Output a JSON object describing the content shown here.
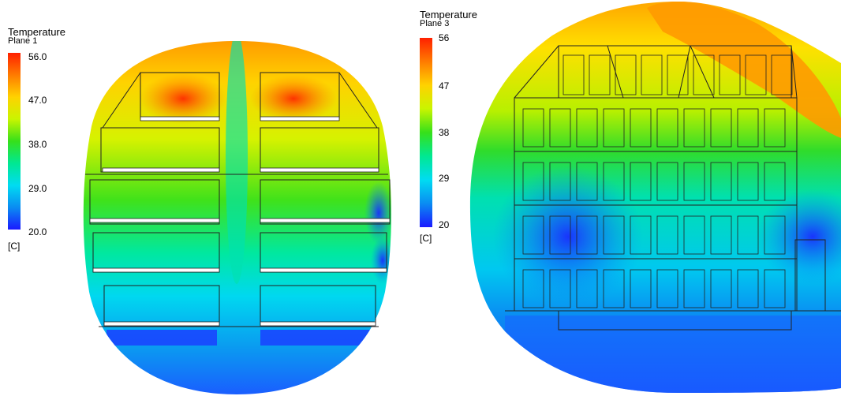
{
  "legends": [
    {
      "title": "Temperature",
      "subtitle": "Plane 1",
      "ticks": [
        "56.0",
        "47.0",
        "38.0",
        "29.0",
        "20.0"
      ],
      "unit": "[C]"
    },
    {
      "title": "Temperature",
      "subtitle": "Plane 3",
      "ticks": [
        "56",
        "47",
        "38",
        "29",
        "20"
      ],
      "unit": "[C]"
    }
  ],
  "colormap": [
    "#ff2000",
    "#ff7b00",
    "#ffd200",
    "#c9f500",
    "#36e01a",
    "#00e892",
    "#00dcf2",
    "#0a8cf2",
    "#1a1aff"
  ],
  "structure_line_color": "#222222"
}
